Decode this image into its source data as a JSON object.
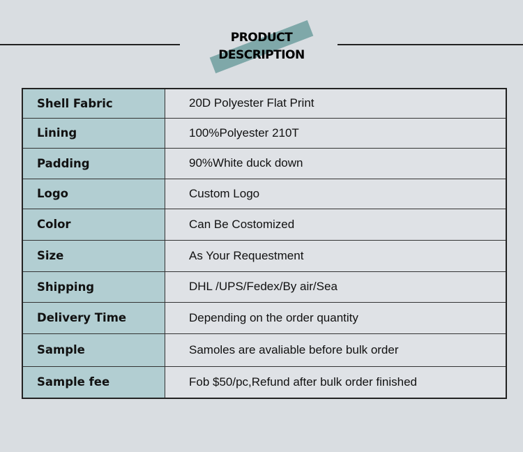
{
  "header": {
    "title_line1": "PRODUCT",
    "title_line2": "DESCRIPTION"
  },
  "colors": {
    "background": "#d9dde1",
    "label_cell": "#b2ced2",
    "value_cell": "#dfe2e6",
    "accent_stripe": "#7fa8a9"
  },
  "rows": [
    {
      "label": "Shell Fabric",
      "value": "20D Polyester Flat Print"
    },
    {
      "label": "Lining",
      "value": "100%Polyester 210T"
    },
    {
      "label": "Padding",
      "value": "90%White duck down"
    },
    {
      "label": "Logo",
      "value": "Custom Logo"
    },
    {
      "label": "Color",
      "value": "Can Be Costomized"
    },
    {
      "label": "Size",
      "value": "As Your Requestment"
    },
    {
      "label": "Shipping",
      "value": "DHL /UPS/Fedex/By air/Sea"
    },
    {
      "label": "Delivery Time",
      "value": "Depending on the order quantity"
    },
    {
      "label": "Sample",
      "value": "Samoles are avaliable before bulk order"
    },
    {
      "label": "Sample fee",
      "value": "Fob $50/pc,Refund after bulk order finished"
    }
  ]
}
